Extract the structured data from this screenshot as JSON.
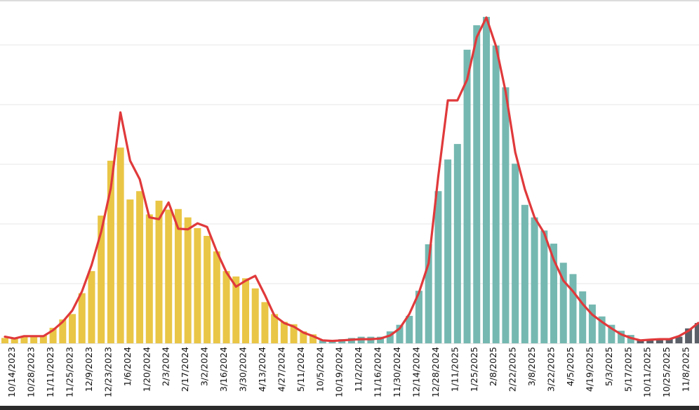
{
  "chart_data": {
    "type": "bar",
    "title": "",
    "xlabel": "",
    "ylabel": "",
    "y_unit_note_visible": false,
    "ylim": [
      0,
      5.75
    ],
    "grid": {
      "horizontal": true,
      "vertical": false,
      "y_gridlines": [
        1,
        2,
        3,
        4,
        5
      ]
    },
    "legend": "none",
    "categories": [
      "",
      "10/14/2023",
      "",
      "10/28/2023",
      "",
      "11/11/2023",
      "",
      "11/25/2023",
      "",
      "12/9/2023",
      "",
      "12/23/2023",
      "",
      "1/6/2024",
      "",
      "1/20/2024",
      "",
      "2/3/2024",
      "",
      "2/17/2024",
      "",
      "3/2/2024",
      "",
      "3/16/2024",
      "",
      "3/30/2024",
      "",
      "4/13/2024",
      "",
      "4/27/2024",
      "",
      "5/11/2024",
      "",
      "10/5/2024",
      "",
      "10/19/2024",
      "",
      "11/2/2024",
      "",
      "11/16/2024",
      "",
      "11/30/2024",
      "",
      "12/14/2024",
      "",
      "12/28/2024",
      "",
      "1/11/2025",
      "",
      "1/25/2025",
      "",
      "2/8/2025",
      "",
      "2/22/2025",
      "",
      "3/8/2025",
      "",
      "3/22/2025",
      "",
      "4/5/2025",
      "",
      "4/19/2025",
      "",
      "5/3/2025",
      "",
      "5/17/2025",
      "",
      "10/11/2025",
      "",
      "10/25/2025",
      "",
      "11/8/2025",
      ""
    ],
    "bar_groups": [
      {
        "color": "#E9C646",
        "count": 33
      },
      {
        "color": "#75B8B1",
        "count": 33
      },
      {
        "color": "#5B5F67",
        "count": 7
      }
    ],
    "series": [
      {
        "kind": "bar",
        "values": [
          0.09,
          0.08,
          0.11,
          0.11,
          0.13,
          0.26,
          0.4,
          0.49,
          0.84,
          1.21,
          2.14,
          3.06,
          3.28,
          2.41,
          2.55,
          2.16,
          2.39,
          2.24,
          2.25,
          2.11,
          1.93,
          1.8,
          1.54,
          1.21,
          1.12,
          1.09,
          0.92,
          0.69,
          0.49,
          0.36,
          0.32,
          0.2,
          0.15,
          0.05,
          0.05,
          0.07,
          0.09,
          0.11,
          0.11,
          0.11,
          0.2,
          0.31,
          0.46,
          0.88,
          1.66,
          2.55,
          3.08,
          3.34,
          4.92,
          5.33,
          5.47,
          4.99,
          4.29,
          3.01,
          2.32,
          2.11,
          1.89,
          1.67,
          1.35,
          1.16,
          0.87,
          0.65,
          0.45,
          0.31,
          0.21,
          0.14,
          0.05,
          0.06,
          0.07,
          0.08,
          0.11,
          0.25,
          0.34
        ]
      },
      {
        "kind": "line",
        "color": "#E0393B",
        "values": [
          0.11,
          0.08,
          0.12,
          0.12,
          0.12,
          0.22,
          0.36,
          0.55,
          0.87,
          1.31,
          1.87,
          2.6,
          3.87,
          3.06,
          2.75,
          2.11,
          2.08,
          2.36,
          1.92,
          1.91,
          2.01,
          1.95,
          1.54,
          1.19,
          0.95,
          1.05,
          1.13,
          0.81,
          0.46,
          0.34,
          0.28,
          0.18,
          0.12,
          0.05,
          0.04,
          0.05,
          0.06,
          0.07,
          0.07,
          0.08,
          0.13,
          0.25,
          0.49,
          0.85,
          1.34,
          2.79,
          4.07,
          4.07,
          4.42,
          5.13,
          5.46,
          4.98,
          4.22,
          3.2,
          2.58,
          2.11,
          1.85,
          1.4,
          1.05,
          0.87,
          0.66,
          0.48,
          0.36,
          0.25,
          0.15,
          0.09,
          0.05,
          0.06,
          0.07,
          0.07,
          0.12,
          0.21,
          0.34
        ]
      }
    ]
  }
}
